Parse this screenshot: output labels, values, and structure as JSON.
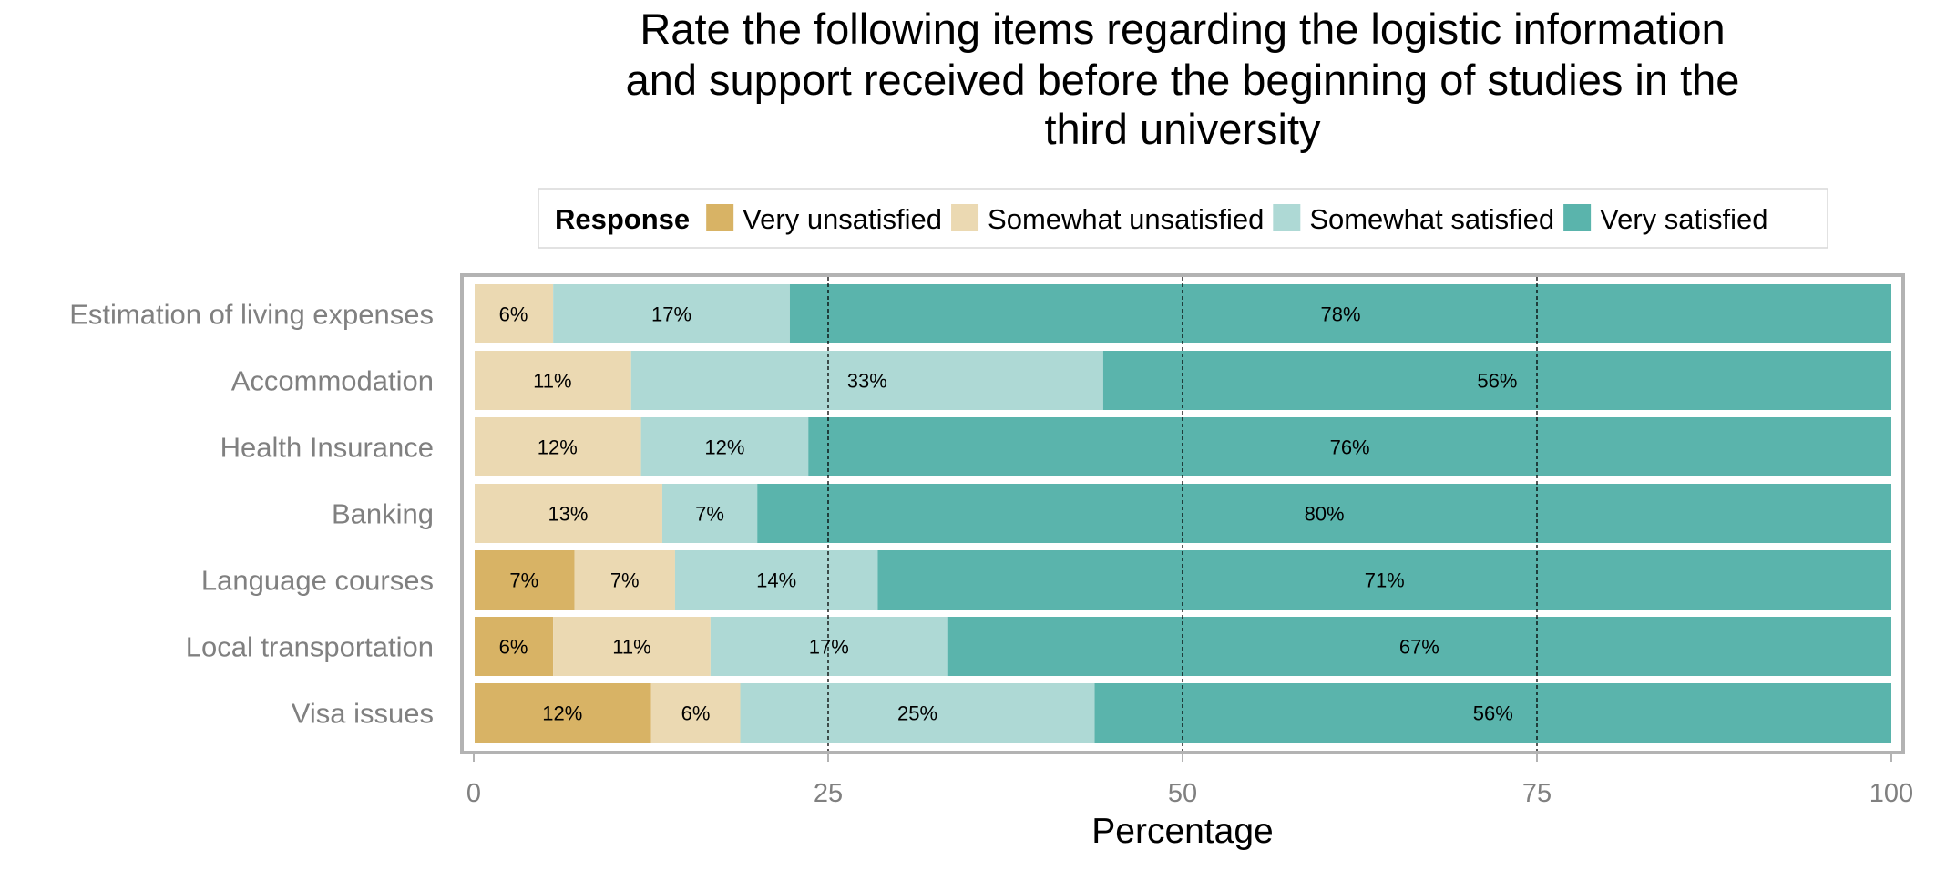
{
  "chart_data": {
    "type": "bar",
    "orientation": "horizontal",
    "stacked": true,
    "title_lines": [
      "Rate the following items regarding the logistic information",
      "and support received before the beginning of studies in the",
      "third university"
    ],
    "xlabel": "Percentage",
    "ylabel": "",
    "xlim": [
      0,
      100
    ],
    "xticks": [
      "0",
      "25",
      "50",
      "75",
      "100"
    ],
    "xtick_values": [
      0,
      25,
      50,
      75,
      100
    ],
    "reference_lines": [
      25,
      50,
      75
    ],
    "legend_title": "Response",
    "legend_position": "top",
    "categories": [
      "Estimation of living expenses",
      "Accommodation",
      "Health Insurance",
      "Banking",
      "Language courses",
      "Local transportation",
      "Visa issues"
    ],
    "series": [
      {
        "name": "Very unsatisfied",
        "color": "#D8B365",
        "values": [
          0,
          0,
          0,
          0,
          7.1,
          5.6,
          12.5
        ],
        "labels": [
          "",
          "",
          "",
          "",
          "7%",
          "6%",
          "12%"
        ]
      },
      {
        "name": "Somewhat unsatisfied",
        "color": "#EBD9B2",
        "values": [
          5.6,
          11.1,
          11.8,
          13.3,
          7.1,
          11.1,
          6.3
        ],
        "labels": [
          "6%",
          "11%",
          "12%",
          "13%",
          "7%",
          "11%",
          "6%"
        ]
      },
      {
        "name": "Somewhat satisfied",
        "color": "#AED9D5",
        "values": [
          16.7,
          33.3,
          11.8,
          6.7,
          14.3,
          16.7,
          25.0
        ],
        "labels": [
          "17%",
          "33%",
          "12%",
          "7%",
          "14%",
          "17%",
          "25%"
        ]
      },
      {
        "name": "Very satisfied",
        "color": "#5AB4AC",
        "values": [
          77.7,
          55.6,
          76.4,
          80.0,
          71.5,
          66.6,
          56.2
        ],
        "labels": [
          "78%",
          "56%",
          "76%",
          "80%",
          "71%",
          "67%",
          "56%"
        ]
      }
    ]
  }
}
